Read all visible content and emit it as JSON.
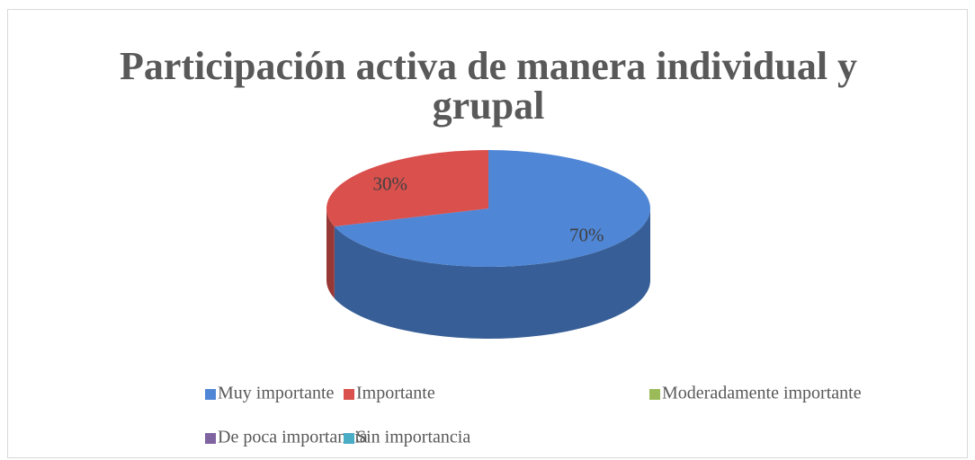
{
  "chart_data": {
    "type": "pie",
    "title": "Participación activa de manera individual y grupal",
    "categories": [
      "Muy importante",
      "Importante",
      "Moderadamente importante",
      "De poca importancia",
      "Sin importancia"
    ],
    "values": [
      70,
      30,
      0,
      0,
      0
    ],
    "value_labels": [
      "70%",
      "30%",
      null,
      null,
      null
    ],
    "colors": [
      "#4f86d6",
      "#d9504d",
      "#9bbb59",
      "#8064a2",
      "#4bacc6"
    ],
    "legend": "bottom"
  }
}
